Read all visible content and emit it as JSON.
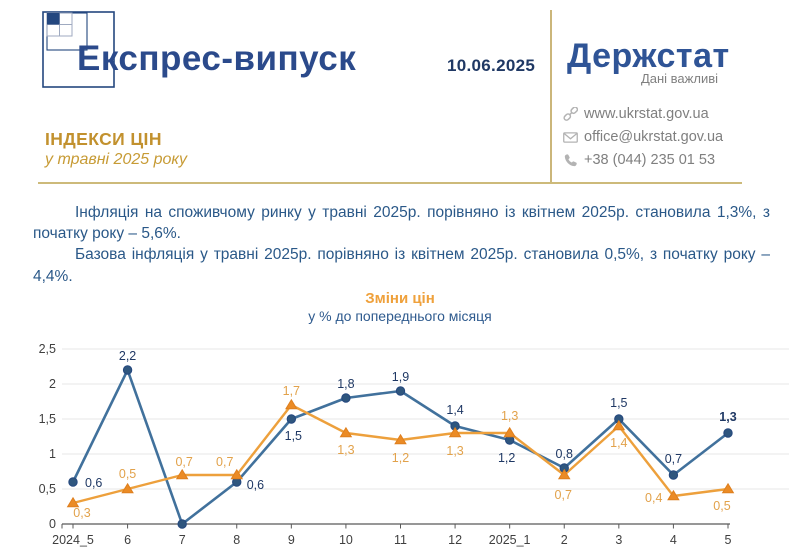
{
  "header": {
    "title": "Експрес-випуск",
    "date": "10.06.2025",
    "brand": "Держстат",
    "brand_tagline": "Дані важливі",
    "contacts": [
      {
        "icon": "link-icon",
        "text": "www.ukrstat.gov.ua"
      },
      {
        "icon": "mail-icon",
        "text": "office@ukrstat.gov.ua"
      },
      {
        "icon": "phone-icon",
        "text": "+38 (044) 235 01 53"
      }
    ],
    "subject": "ІНДЕКСИ ЦІН",
    "period": "у травні 2025 року"
  },
  "body": {
    "paragraph1": "Інфляція на споживчому ринку у травні 2025р. порівняно із квітнем 2025р. становила 1,3%, з початку року – 5,6%.",
    "paragraph2": "Базова інфляція у травні 2025р. порівняно із квітнем 2025р. становила 0,5%, з початку року – 4,4%."
  },
  "chart_data": {
    "type": "line",
    "title": "Зміни цін",
    "subtitle": "у % до попереднього місяця",
    "categories": [
      "2024_5",
      "6",
      "7",
      "8",
      "9",
      "10",
      "11",
      "12",
      "2025_1",
      "2",
      "3",
      "4",
      "5"
    ],
    "series": [
      {
        "id": "consumer-price-index",
        "marker": "circle",
        "color": "#41719C",
        "marker_color": "#2F567E",
        "marker_edge": "#24477F",
        "label_color": "#1F3864",
        "values": [
          0.6,
          2.2,
          0.0,
          0.6,
          1.5,
          1.8,
          1.9,
          1.4,
          1.2,
          0.8,
          1.5,
          0.7,
          1.3
        ],
        "labels": [
          "0,6",
          "2,2",
          "",
          "0,6",
          "1,5",
          "1,8",
          "1,9",
          "1,4",
          "1,2",
          "0,8",
          "1,5",
          "0,7",
          "1,3"
        ]
      },
      {
        "id": "core-inflation",
        "marker": "triangle",
        "color": "#EDA03C",
        "marker_color": "#EB8B25",
        "marker_edge": "#DE7F1E",
        "label_color": "#E2A24B",
        "values": [
          0.3,
          0.5,
          0.7,
          0.7,
          1.7,
          1.3,
          1.2,
          1.3,
          1.3,
          0.7,
          1.4,
          0.4,
          0.5
        ],
        "labels": [
          "0,3",
          "0,5",
          "0,7",
          "0,7",
          "1,7",
          "1,3",
          "1,2",
          "1,3",
          "1,3",
          "0,7",
          "1,4",
          "0,4",
          "0,5"
        ]
      }
    ],
    "ylim": [
      0,
      2.5
    ],
    "ytick_step": 0.5,
    "yticks": [
      "0",
      "0,5",
      "1",
      "1,5",
      "2",
      "2,5"
    ],
    "grid": true,
    "legend": "none",
    "axis_color": "#595959",
    "grid_color": "#E7E7E7",
    "tick_label_color": "#3F3F3F"
  }
}
